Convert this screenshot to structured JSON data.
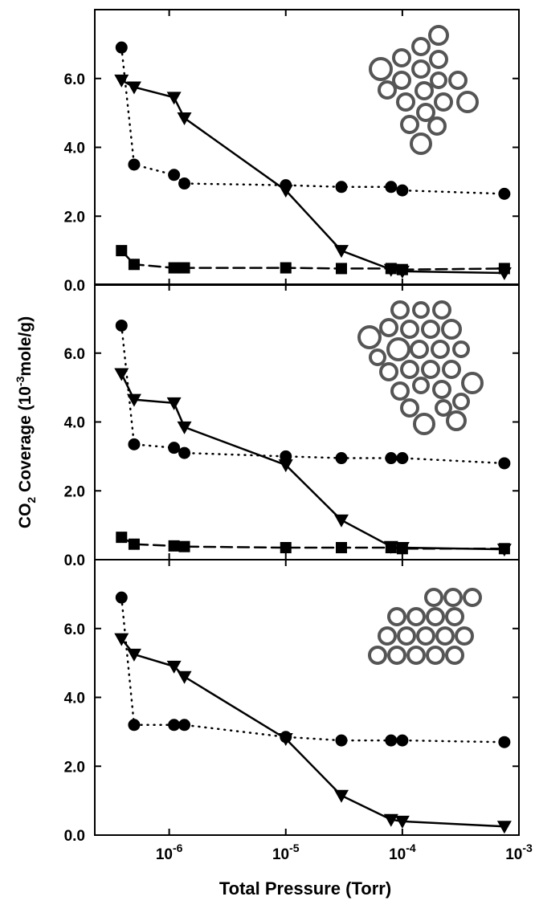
{
  "chart_data": [
    {
      "type": "line",
      "xlim": [
        2.3e-07,
        0.001
      ],
      "log_x": true,
      "ylim": [
        0,
        8
      ],
      "yticks": [
        {
          "value": 0,
          "label": "0.0"
        },
        {
          "value": 2,
          "label": "2.0"
        },
        {
          "value": 4,
          "label": "4.0"
        },
        {
          "value": 6,
          "label": "6.0"
        }
      ],
      "x": [
        3.9e-07,
        5e-07,
        1.1e-06,
        1.35e-06,
        1e-05,
        3e-05,
        8e-05,
        0.0001,
        0.00075
      ],
      "series": [
        {
          "color": "#000000",
          "marker": "circle",
          "line_style": "dotted",
          "values": [
            6.9,
            3.5,
            3.2,
            2.95,
            2.9,
            2.85,
            2.85,
            2.75,
            2.65
          ]
        },
        {
          "color": "#000000",
          "marker": "triangle-down",
          "line_style": "solid",
          "values": [
            5.95,
            5.75,
            5.45,
            4.85,
            2.75,
            1.0,
            0.45,
            0.4,
            0.35
          ]
        },
        {
          "color": "#000000",
          "marker": "square",
          "line_style": "dashed",
          "values": [
            1.0,
            0.6,
            0.5,
            0.5,
            0.5,
            0.48,
            0.48,
            0.45,
            0.48
          ]
        }
      ]
    },
    {
      "type": "line",
      "xlim": [
        2.3e-07,
        0.001
      ],
      "log_x": true,
      "ylim": [
        0,
        8
      ],
      "yticks": [
        {
          "value": 0,
          "label": "0.0"
        },
        {
          "value": 2,
          "label": "2.0"
        },
        {
          "value": 4,
          "label": "4.0"
        },
        {
          "value": 6,
          "label": "6.0"
        }
      ],
      "y_label": [
        "CO",
        "2",
        " Coverage  (10",
        "-3",
        "mole/g)"
      ],
      "x": [
        3.9e-07,
        5e-07,
        1.1e-06,
        1.35e-06,
        1e-05,
        3e-05,
        8e-05,
        0.0001,
        0.00075
      ],
      "series": [
        {
          "color": "#000000",
          "marker": "circle",
          "line_style": "dotted",
          "values": [
            6.8,
            3.35,
            3.25,
            3.1,
            3.0,
            2.95,
            2.95,
            2.95,
            2.8
          ]
        },
        {
          "color": "#000000",
          "marker": "triangle-down",
          "line_style": "solid",
          "values": [
            5.4,
            4.65,
            4.55,
            3.85,
            2.75,
            1.15,
            0.38,
            0.35,
            0.3
          ]
        },
        {
          "color": "#000000",
          "marker": "square",
          "line_style": "dashed",
          "values": [
            0.65,
            0.45,
            0.4,
            0.38,
            0.35,
            0.35,
            0.35,
            0.32,
            0.32
          ]
        }
      ]
    },
    {
      "type": "line",
      "xlim": [
        2.3e-07,
        0.001
      ],
      "log_x": true,
      "ylim": [
        0,
        8
      ],
      "yticks": [
        {
          "value": 0,
          "label": "0.0"
        },
        {
          "value": 2,
          "label": "2.0"
        },
        {
          "value": 4,
          "label": "4.0"
        },
        {
          "value": 6,
          "label": "6.0"
        }
      ],
      "xticks": [
        {
          "value": 1e-06,
          "label": "10",
          "exponent": "-6"
        },
        {
          "value": 1e-05,
          "label": "10",
          "exponent": "-5"
        },
        {
          "value": 0.0001,
          "label": "10",
          "exponent": "-4"
        },
        {
          "value": 0.001,
          "label": "10",
          "exponent": "-3"
        }
      ],
      "x_label": "Total Pressure (Torr)",
      "x": [
        3.9e-07,
        5e-07,
        1.1e-06,
        1.35e-06,
        1e-05,
        3e-05,
        8e-05,
        0.0001,
        0.00075
      ],
      "series": [
        {
          "color": "#000000",
          "marker": "circle",
          "line_style": "dotted",
          "values": [
            6.9,
            3.2,
            3.2,
            3.2,
            2.85,
            2.75,
            2.75,
            2.75,
            2.7
          ]
        },
        {
          "color": "#000000",
          "marker": "triangle-down",
          "line_style": "solid",
          "values": [
            5.7,
            5.25,
            4.9,
            4.6,
            2.8,
            1.15,
            0.45,
            0.4,
            0.25
          ]
        }
      ]
    }
  ]
}
